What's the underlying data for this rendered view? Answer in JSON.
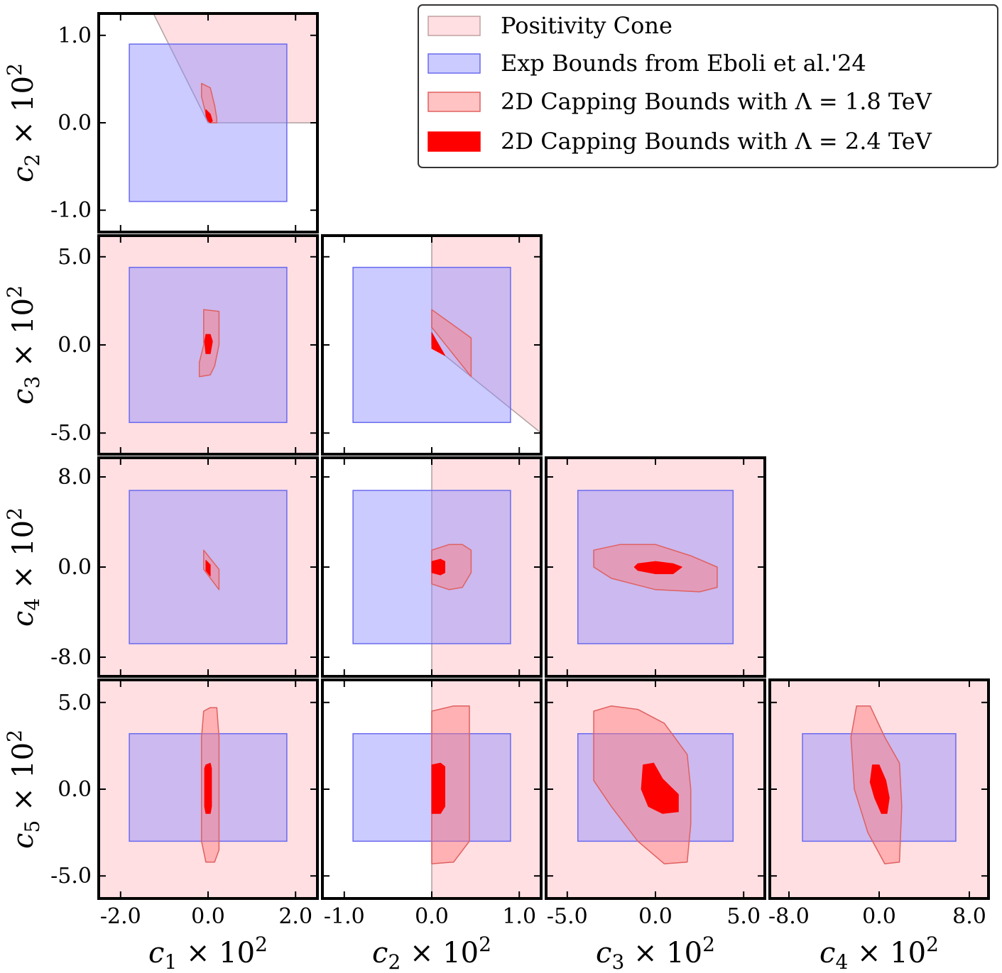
{
  "chart_data": {
    "type": "corner",
    "legend": {
      "placement": "top-right",
      "entries": [
        {
          "label": "Positivity Cone",
          "fill": "#ffc0c6",
          "alpha": 0.5,
          "edge": "#c0a0a0"
        },
        {
          "label": "Exp Bounds from Eboli et al.'24",
          "fill": "#8c8cff",
          "alpha": 0.45,
          "edge": "#6a6af0"
        },
        {
          "label": "2D Capping Bounds with Λ = 1.8 TeV",
          "fill": "#ff7a7a",
          "alpha": 0.45,
          "edge": "#e06060"
        },
        {
          "label": "2D Capping Bounds with Λ = 2.4 TeV",
          "fill": "#ff0000",
          "alpha": 1,
          "edge": "#ff0000"
        }
      ]
    },
    "parameters": [
      {
        "name": "c1",
        "sub": "1",
        "range": [
          -2.5,
          2.5
        ],
        "exp": [
          -1.8,
          1.8
        ],
        "ticks": [
          -2.0,
          0.0,
          2.0
        ],
        "tick_labels": [
          "-2.0",
          "0.0",
          "2.0"
        ]
      },
      {
        "name": "c2",
        "sub": "2",
        "range": [
          -1.25,
          1.25
        ],
        "exp": [
          -0.9,
          0.9
        ],
        "ticks": [
          -1.0,
          0.0,
          1.0
        ],
        "tick_labels": [
          "-1.0",
          "0.0",
          "1.0"
        ]
      },
      {
        "name": "c3",
        "sub": "3",
        "range": [
          -6.2,
          6.2
        ],
        "exp": [
          -4.4,
          4.4
        ],
        "ticks": [
          -5.0,
          0.0,
          5.0
        ],
        "tick_labels": [
          "-5.0",
          "0.0",
          "5.0"
        ]
      },
      {
        "name": "c4",
        "sub": "4",
        "range": [
          -9.7,
          9.7
        ],
        "exp": [
          -6.8,
          6.8
        ],
        "ticks": [
          -8.0,
          0.0,
          8.0
        ],
        "tick_labels": [
          "-8.0",
          "0.0",
          "8.0"
        ]
      },
      {
        "name": "c5",
        "sub": "5",
        "range": [
          -6.3,
          6.3
        ],
        "exp": [
          -3.0,
          3.2
        ],
        "ticks": [
          -5.0,
          0.0,
          5.0
        ],
        "tick_labels": [
          "-5.0",
          "0.0",
          "5.0"
        ]
      }
    ],
    "axis_label_base": "c",
    "axis_label_suffix": "× 10",
    "axis_label_power": "2",
    "panels": [
      {
        "x": 0,
        "y": 1,
        "cone": [
          [
            -1.25,
            1.25
          ],
          [
            2.5,
            1.25
          ],
          [
            2.5,
            0
          ],
          [
            0,
            0
          ]
        ],
        "c18": [
          [
            -0.15,
            0.45
          ],
          [
            0.05,
            0.4
          ],
          [
            0.15,
            0.2
          ],
          [
            0.2,
            0.05
          ],
          [
            0.2,
            0
          ],
          [
            0.05,
            0
          ],
          [
            -0.05,
            0.1
          ],
          [
            -0.15,
            0.3
          ]
        ],
        "c24": [
          [
            -0.05,
            0.15
          ],
          [
            0.05,
            0.1
          ],
          [
            0.1,
            0.02
          ],
          [
            0.05,
            0
          ],
          [
            0,
            0.02
          ],
          [
            -0.05,
            0.08
          ]
        ]
      },
      {
        "x": 0,
        "y": 2,
        "cone": "full",
        "c18": [
          [
            -0.1,
            2.0
          ],
          [
            0.25,
            1.9
          ],
          [
            0.25,
            0
          ],
          [
            0.15,
            -1.2
          ],
          [
            0.05,
            -1.7
          ],
          [
            -0.2,
            -1.8
          ],
          [
            -0.2,
            -1.0
          ],
          [
            -0.1,
            0
          ]
        ],
        "c24": [
          [
            -0.05,
            0.6
          ],
          [
            0.05,
            0.6
          ],
          [
            0.1,
            0.2
          ],
          [
            0.05,
            -0.5
          ],
          [
            -0.05,
            -0.5
          ],
          [
            -0.08,
            0.2
          ]
        ]
      },
      {
        "x": 1,
        "y": 2,
        "cone": [
          [
            0,
            6.2
          ],
          [
            1.25,
            6.2
          ],
          [
            1.25,
            -5.0
          ],
          [
            0,
            0
          ]
        ],
        "c18": [
          [
            0,
            2.0
          ],
          [
            0.45,
            0.4
          ],
          [
            0.45,
            -1.8
          ],
          [
            0,
            1.0
          ]
        ],
        "c24": [
          [
            0,
            0.7
          ],
          [
            0.15,
            -0.6
          ],
          [
            0,
            -0.2
          ]
        ]
      },
      {
        "x": 0,
        "y": 3,
        "cone": "full",
        "c18": [
          [
            -0.1,
            1.5
          ],
          [
            0.25,
            -0.2
          ],
          [
            0.25,
            -2.0
          ],
          [
            -0.1,
            -0.2
          ]
        ],
        "c24": [
          [
            -0.05,
            0.6
          ],
          [
            0.05,
            0.2
          ],
          [
            0.05,
            -0.8
          ],
          [
            -0.05,
            -0.3
          ]
        ]
      },
      {
        "x": 1,
        "y": 3,
        "cone": [
          [
            0,
            9.7
          ],
          [
            1.25,
            9.7
          ],
          [
            1.25,
            -9.7
          ],
          [
            0,
            -9.7
          ]
        ],
        "c18": [
          [
            0,
            1.5
          ],
          [
            0.2,
            2.0
          ],
          [
            0.35,
            2.0
          ],
          [
            0.45,
            1.5
          ],
          [
            0.45,
            -0.5
          ],
          [
            0.35,
            -1.8
          ],
          [
            0.2,
            -2.0
          ],
          [
            0,
            -1.5
          ]
        ],
        "c24": [
          [
            0,
            0.5
          ],
          [
            0.1,
            0.7
          ],
          [
            0.15,
            0.5
          ],
          [
            0.15,
            -0.5
          ],
          [
            0.1,
            -0.7
          ],
          [
            0,
            -0.5
          ]
        ]
      },
      {
        "x": 2,
        "y": 3,
        "cone": "full",
        "c18": [
          [
            -3.5,
            1.5
          ],
          [
            -2.0,
            2.0
          ],
          [
            0,
            2.0
          ],
          [
            2.0,
            1.0
          ],
          [
            3.5,
            0
          ],
          [
            3.5,
            -1.8
          ],
          [
            2.5,
            -2.2
          ],
          [
            0,
            -2.0
          ],
          [
            -2.5,
            -1.0
          ],
          [
            -3.5,
            0
          ]
        ],
        "c24": [
          [
            -1.0,
            0.3
          ],
          [
            0,
            0.5
          ],
          [
            1.0,
            0.3
          ],
          [
            1.5,
            0
          ],
          [
            1.0,
            -0.6
          ],
          [
            0,
            -0.6
          ],
          [
            -1.0,
            -0.3
          ],
          [
            -1.2,
            0
          ]
        ]
      },
      {
        "x": 0,
        "y": 4,
        "cone": "full",
        "c18": [
          [
            -0.1,
            4.5
          ],
          [
            0.05,
            4.7
          ],
          [
            0.2,
            4.7
          ],
          [
            0.25,
            3.0
          ],
          [
            0.25,
            -3.5
          ],
          [
            0.15,
            -4.2
          ],
          [
            -0.05,
            -4.2
          ],
          [
            -0.15,
            -3.0
          ],
          [
            -0.15,
            3.0
          ]
        ],
        "c24": [
          [
            -0.05,
            1.4
          ],
          [
            0.05,
            1.5
          ],
          [
            0.08,
            1.2
          ],
          [
            0.08,
            -1.0
          ],
          [
            0.05,
            -1.4
          ],
          [
            -0.05,
            -1.4
          ],
          [
            -0.08,
            -1.0
          ],
          [
            -0.08,
            1.2
          ]
        ]
      },
      {
        "x": 1,
        "y": 4,
        "cone": [
          [
            0,
            6.3
          ],
          [
            1.25,
            6.3
          ],
          [
            1.25,
            -6.3
          ],
          [
            0,
            -6.3
          ]
        ],
        "c18": [
          [
            0,
            4.5
          ],
          [
            0.25,
            4.8
          ],
          [
            0.43,
            4.8
          ],
          [
            0.43,
            -3.0
          ],
          [
            0.25,
            -4.2
          ],
          [
            0,
            -4.3
          ]
        ],
        "c24": [
          [
            0,
            1.4
          ],
          [
            0.1,
            1.5
          ],
          [
            0.15,
            1.3
          ],
          [
            0.15,
            -1.0
          ],
          [
            0.1,
            -1.4
          ],
          [
            0,
            -1.4
          ]
        ]
      },
      {
        "x": 2,
        "y": 4,
        "cone": "full",
        "c18": [
          [
            -3.5,
            4.5
          ],
          [
            -2.5,
            4.8
          ],
          [
            -1.0,
            4.6
          ],
          [
            0.5,
            3.8
          ],
          [
            1.8,
            2.0
          ],
          [
            2.0,
            0
          ],
          [
            2.0,
            -2.0
          ],
          [
            1.8,
            -4.2
          ],
          [
            0.5,
            -4.3
          ],
          [
            -1.0,
            -3.0
          ],
          [
            -2.5,
            -1.0
          ],
          [
            -3.5,
            0.5
          ]
        ],
        "c24": [
          [
            -0.7,
            1.4
          ],
          [
            -0.1,
            1.5
          ],
          [
            0.4,
            0.6
          ],
          [
            1.3,
            -0.3
          ],
          [
            1.3,
            -1.3
          ],
          [
            0.4,
            -1.4
          ],
          [
            -0.4,
            -1.0
          ],
          [
            -0.8,
            0
          ]
        ]
      },
      {
        "x": 3,
        "y": 4,
        "cone": "full",
        "c18": [
          [
            -2.0,
            4.8
          ],
          [
            -0.8,
            4.8
          ],
          [
            0.5,
            3.0
          ],
          [
            1.8,
            1.5
          ],
          [
            2.0,
            -1.0
          ],
          [
            1.8,
            -4.2
          ],
          [
            0.5,
            -4.3
          ],
          [
            -1.0,
            -2.5
          ],
          [
            -2.2,
            0
          ],
          [
            -2.5,
            3.0
          ]
        ],
        "c24": [
          [
            -0.6,
            1.4
          ],
          [
            0,
            1.4
          ],
          [
            0.6,
            0.5
          ],
          [
            0.9,
            -0.5
          ],
          [
            0.7,
            -1.4
          ],
          [
            0.2,
            -1.4
          ],
          [
            -0.4,
            -0.5
          ],
          [
            -0.8,
            0.4
          ]
        ]
      }
    ]
  }
}
